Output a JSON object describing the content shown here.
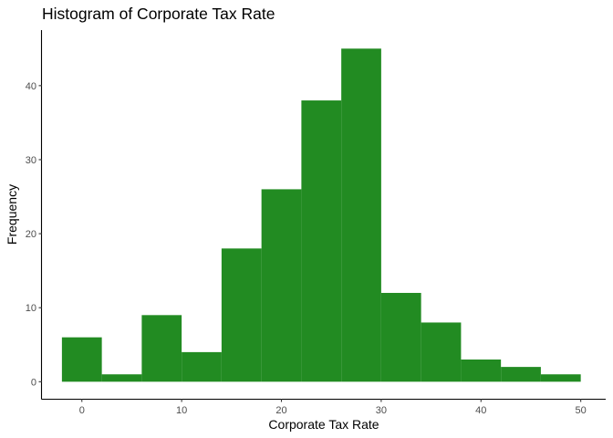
{
  "chart_data": {
    "type": "bar",
    "title": "Histogram of Corporate Tax Rate",
    "xlabel": "Corporate Tax Rate",
    "ylabel": "Frequency",
    "bar_color": "#228B22",
    "xlim": [
      -4,
      52.5
    ],
    "ylim": [
      -2.3,
      47.5
    ],
    "x_ticks": [
      0,
      10,
      20,
      30,
      40,
      50
    ],
    "y_ticks": [
      0,
      10,
      20,
      30,
      40
    ],
    "grid": false,
    "bins": [
      {
        "x_start": -2,
        "x_end": 2,
        "count": 6
      },
      {
        "x_start": 2,
        "x_end": 6,
        "count": 1
      },
      {
        "x_start": 6,
        "x_end": 10,
        "count": 9
      },
      {
        "x_start": 10,
        "x_end": 14,
        "count": 4
      },
      {
        "x_start": 14,
        "x_end": 18,
        "count": 18
      },
      {
        "x_start": 18,
        "x_end": 22,
        "count": 26
      },
      {
        "x_start": 22,
        "x_end": 26,
        "count": 38
      },
      {
        "x_start": 26,
        "x_end": 30,
        "count": 45
      },
      {
        "x_start": 30,
        "x_end": 34,
        "count": 12
      },
      {
        "x_start": 34,
        "x_end": 38,
        "count": 8
      },
      {
        "x_start": 38,
        "x_end": 42,
        "count": 3
      },
      {
        "x_start": 42,
        "x_end": 46,
        "count": 2
      },
      {
        "x_start": 46,
        "x_end": 50,
        "count": 1
      }
    ]
  }
}
